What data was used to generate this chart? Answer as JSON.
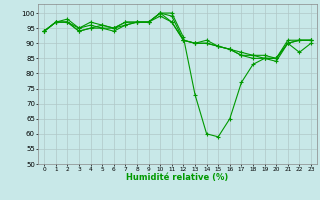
{
  "title": "",
  "xlabel": "Humidité relative (%)",
  "ylabel": "",
  "xlim": [
    -0.5,
    23.5
  ],
  "ylim": [
    50,
    103
  ],
  "yticks": [
    50,
    55,
    60,
    65,
    70,
    75,
    80,
    85,
    90,
    95,
    100
  ],
  "xticks": [
    0,
    1,
    2,
    3,
    4,
    5,
    6,
    7,
    8,
    9,
    10,
    11,
    12,
    13,
    14,
    15,
    16,
    17,
    18,
    19,
    20,
    21,
    22,
    23
  ],
  "background_color": "#c8e8e8",
  "grid_color": "#b0c8c8",
  "line_color": "#009900",
  "lines": [
    [
      94,
      97,
      97,
      94,
      95,
      95,
      94,
      96,
      97,
      97,
      100,
      100,
      92,
      73,
      60,
      59,
      65,
      77,
      83,
      85,
      84,
      90,
      87,
      90
    ],
    [
      94,
      97,
      97,
      95,
      96,
      95,
      95,
      96,
      97,
      97,
      100,
      99,
      91,
      90,
      90,
      89,
      88,
      87,
      86,
      85,
      85,
      90,
      91,
      91
    ],
    [
      94,
      97,
      97,
      94,
      95,
      96,
      95,
      97,
      97,
      97,
      100,
      97,
      91,
      90,
      90,
      89,
      88,
      86,
      85,
      85,
      85,
      90,
      91,
      91
    ],
    [
      94,
      97,
      98,
      95,
      97,
      96,
      95,
      97,
      97,
      97,
      99,
      97,
      91,
      90,
      91,
      89,
      88,
      86,
      86,
      86,
      85,
      91,
      91,
      91
    ]
  ],
  "figsize": [
    3.2,
    2.0
  ],
  "dpi": 100,
  "xlabel_fontsize": 6,
  "tick_labelsize": 5,
  "linewidth": 0.8,
  "markersize": 3
}
